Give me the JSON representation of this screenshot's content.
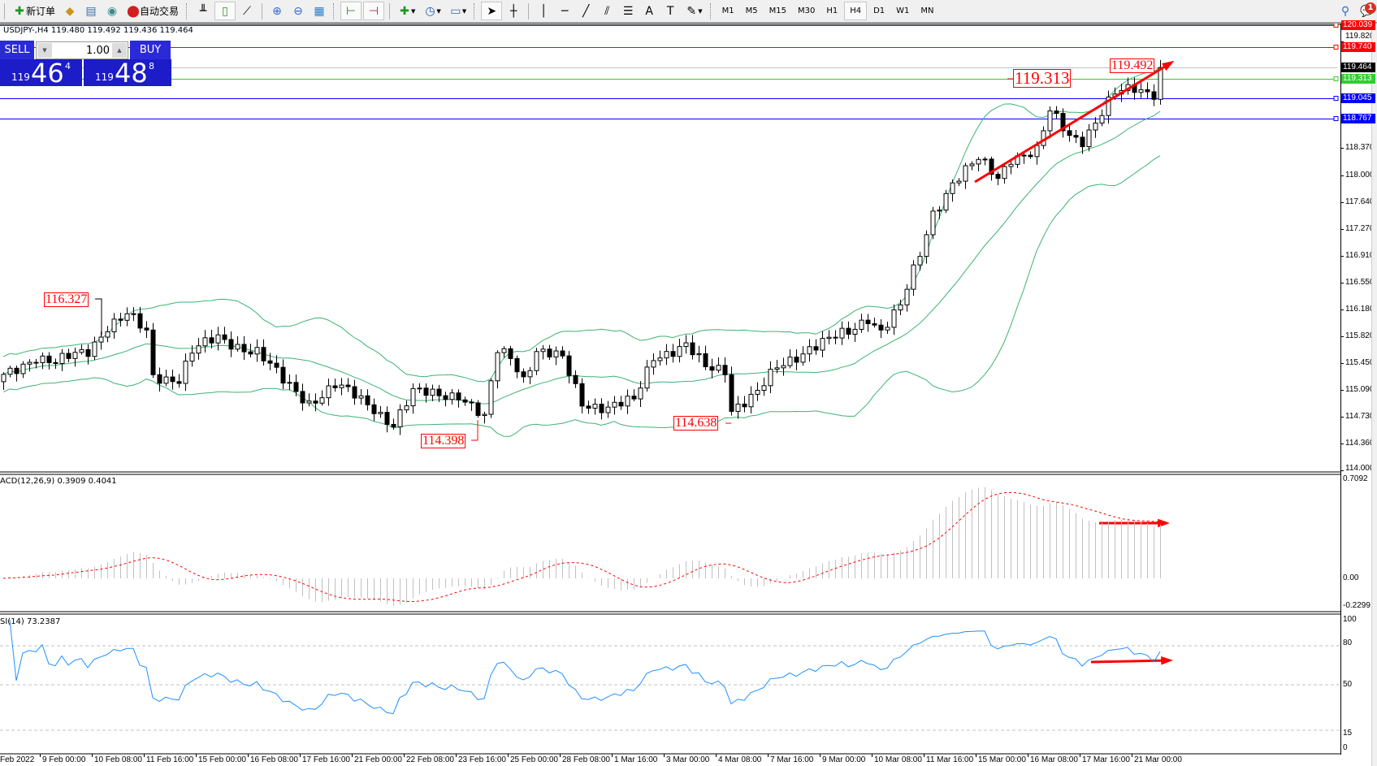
{
  "toolbar": {
    "new_order_label": "新订单",
    "auto_trading_label": "自动交易",
    "timeframes": [
      "M1",
      "M5",
      "M15",
      "M30",
      "H1",
      "H4",
      "D1",
      "W1",
      "MN"
    ],
    "active_timeframe": "H4",
    "notification_count": "1",
    "icons": [
      "new-order-icon",
      "market-watch-icon",
      "navigator-icon",
      "signals-icon",
      "auto-trading-icon",
      "bar-chart-icon",
      "candlestick-icon",
      "line-chart-icon",
      "zoom-in-icon",
      "zoom-out-icon",
      "tile-windows-icon",
      "chart-shift-icon",
      "autoscroll-icon",
      "indicators-icon",
      "periods-icon",
      "templates-icon",
      "cursor-icon",
      "crosshair-icon",
      "vertical-line-icon",
      "horizontal-line-icon",
      "trendline-icon",
      "equidistant-channel-icon",
      "fibonacci-icon",
      "text-icon",
      "text-label-icon",
      "arrows-icon",
      "search-icon",
      "notifications-icon"
    ]
  },
  "chart": {
    "info": "USDJPY-,H4  119.480 119.492 119.436 119.464",
    "one_click": {
      "sell_label": "SELL",
      "buy_label": "BUY",
      "lot": "1.00",
      "sell_price": {
        "big": "119",
        "main": "46",
        "tick": "4"
      },
      "buy_price": {
        "big": "119",
        "main": "48",
        "tick": "8"
      }
    },
    "macd_label": "ACD(12,26,9) 0.3909 0.4041",
    "rsi_label": "SI(14) 73.2387"
  },
  "chart_data": {
    "type": "candlestick",
    "symbol": "USDJPY-",
    "timeframe": "H4",
    "price_axis_ticks": [
      "119.820",
      "118.370",
      "118.000",
      "117.640",
      "117.270",
      "116.910",
      "116.550",
      "116.180",
      "115.820",
      "115.450",
      "115.090",
      "114.730",
      "114.360",
      "114.000"
    ],
    "price_range": [
      114.0,
      120.039
    ],
    "time_labels": [
      "Feb 2022",
      "9 Feb 00:00",
      "10 Feb 08:00",
      "11 Feb 16:00",
      "15 Feb 00:00",
      "16 Feb 08:00",
      "17 Feb 16:00",
      "21 Feb 00:00",
      "22 Feb 08:00",
      "23 Feb 16:00",
      "25 Feb 00:00",
      "28 Feb 08:00",
      "1 Mar 16:00",
      "3 Mar 00:00",
      "4 Mar 08:00",
      "7 Mar 16:00",
      "9 Mar 00:00",
      "10 Mar 08:00",
      "11 Mar 16:00",
      "15 Mar 00:00",
      "16 Mar 08:00",
      "17 Mar 16:00",
      "21 Mar 00:00"
    ],
    "bars_per_time_label": 8,
    "close_keypoints": [
      [
        0,
        115.26
      ],
      [
        5,
        115.56
      ],
      [
        8,
        115.45
      ],
      [
        13,
        115.62
      ],
      [
        16,
        115.97
      ],
      [
        19,
        116.11
      ],
      [
        22,
        115.85
      ],
      [
        23,
        115.26
      ],
      [
        27,
        115.26
      ],
      [
        29,
        115.62
      ],
      [
        33,
        115.78
      ],
      [
        39,
        115.62
      ],
      [
        43,
        115.2
      ],
      [
        47,
        114.93
      ],
      [
        51,
        115.15
      ],
      [
        57,
        114.85
      ],
      [
        60,
        114.63
      ],
      [
        63,
        115.04
      ],
      [
        70,
        115.04
      ],
      [
        74,
        114.68
      ],
      [
        76,
        115.62
      ],
      [
        78,
        115.56
      ],
      [
        80,
        115.26
      ],
      [
        82,
        115.62
      ],
      [
        86,
        115.5
      ],
      [
        89,
        114.93
      ],
      [
        93,
        114.85
      ],
      [
        97,
        114.93
      ],
      [
        100,
        115.56
      ],
      [
        105,
        115.68
      ],
      [
        108,
        115.38
      ],
      [
        111,
        115.38
      ],
      [
        112,
        114.85
      ],
      [
        116,
        115.04
      ],
      [
        119,
        115.38
      ],
      [
        124,
        115.68
      ],
      [
        130,
        115.85
      ],
      [
        133,
        116.09
      ],
      [
        135,
        115.91
      ],
      [
        138,
        116.21
      ],
      [
        141,
        116.92
      ],
      [
        143,
        117.5
      ],
      [
        146,
        117.91
      ],
      [
        150,
        118.2
      ],
      [
        153,
        117.97
      ],
      [
        155,
        118.26
      ],
      [
        159,
        118.32
      ],
      [
        161,
        118.85
      ],
      [
        164,
        118.55
      ],
      [
        166,
        118.5
      ],
      [
        168,
        118.73
      ],
      [
        171,
        119.09
      ],
      [
        174,
        119.18
      ],
      [
        177,
        119.14
      ],
      [
        178,
        119.464
      ]
    ],
    "bollinger": {
      "period": 20,
      "deviation": 2,
      "color": "#3cb371"
    },
    "horizontal_lines": [
      {
        "price": "120.039",
        "color": "#ff0000"
      },
      {
        "price": "119.740",
        "color": "#ff0000"
      },
      {
        "price": "119.464",
        "color": "#c0c0c0",
        "tag_color": "#000000"
      },
      {
        "price": "119.313",
        "color": "#32cd32"
      },
      {
        "price": "119.045",
        "color": "#0000ff"
      },
      {
        "price": "118.767",
        "color": "#0000ff"
      }
    ],
    "annotations": [
      {
        "text": "116.327",
        "bar": 14,
        "price": 116.327
      },
      {
        "text": "114.398",
        "bar": 68,
        "price": 114.398
      },
      {
        "text": "114.638",
        "bar": 112,
        "price": 114.638
      },
      {
        "text": "119.313",
        "bar": 162,
        "price": 119.313
      },
      {
        "text": "119.492",
        "bar": 170,
        "price": 119.492
      }
    ],
    "trend_arrow": {
      "from": [
        150,
        117.9
      ],
      "to": [
        180,
        119.55
      ],
      "color": "#ff0000"
    },
    "macd": {
      "params": "12,26,9",
      "main": 0.3909,
      "signal": 0.4041,
      "axis_ticks": [
        "0.7092",
        "0.00",
        "-0.2299"
      ],
      "range": [
        -0.2299,
        0.7092
      ]
    },
    "rsi": {
      "period": 14,
      "value": 73.2387,
      "axis_ticks": [
        "100",
        "80",
        "50",
        "15",
        "0"
      ],
      "levels": [
        80,
        50,
        15
      ]
    },
    "colors": {
      "bull_body": "#ffffff",
      "bear_body": "#000000",
      "rsi_line": "#1e90ff",
      "macd_hist": "#c0c0c0",
      "macd_signal": "#ff0000"
    }
  }
}
